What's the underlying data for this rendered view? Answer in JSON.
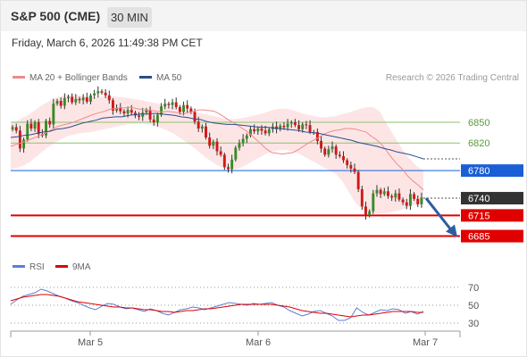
{
  "header": {
    "title": "S&P 500 (CME)",
    "timeframe": "30 MIN"
  },
  "timestamp": "Friday, March 6, 2026 11:49:38 PM CET",
  "legend": [
    {
      "label": "MA 20 + Bollinger Bands",
      "color": "#f08a8a"
    },
    {
      "label": "MA 50",
      "color": "#2a4d8f"
    }
  ],
  "copyright": "Research © 2026 Trading Central",
  "rsi_legend": [
    {
      "label": "RSI",
      "color": "#5b7fd6"
    },
    {
      "label": "9MA",
      "color": "#e00000"
    }
  ],
  "chart_data": [
    {
      "type": "candlestick",
      "title": "S&P 500 (CME)",
      "timeframe": "30 MIN",
      "ylim": [
        6665,
        6885
      ],
      "x_ticks": [
        "Mar 5",
        "Mar 6",
        "Mar 7"
      ],
      "levels": [
        {
          "label": "6850",
          "value": 6850,
          "kind": "resistance",
          "color": "#8dc26e"
        },
        {
          "label": "6820",
          "value": 6820,
          "kind": "resistance",
          "color": "#8dc26e"
        },
        {
          "label": "6780",
          "value": 6780,
          "kind": "pivot",
          "color": "#1a5fd6"
        },
        {
          "label": "6740",
          "value": 6740,
          "kind": "last",
          "color": "#333333"
        },
        {
          "label": "6715",
          "value": 6715,
          "kind": "support",
          "color": "#e00000"
        },
        {
          "label": "6685",
          "value": 6685,
          "kind": "support",
          "color": "#e00000"
        }
      ],
      "forecast_arrow": {
        "from": 6740,
        "to": 6685,
        "direction": "down"
      },
      "candles_close": [
        6843,
        6838,
        6812,
        6825,
        6848,
        6841,
        6850,
        6833,
        6831,
        6852,
        6847,
        6877,
        6881,
        6874,
        6885,
        6887,
        6879,
        6884,
        6882,
        6886,
        6880,
        6889,
        6892,
        6895,
        6893,
        6889,
        6882,
        6867,
        6871,
        6866,
        6863,
        6868,
        6864,
        6860,
        6858,
        6864,
        6868,
        6854,
        6850,
        6861,
        6873,
        6877,
        6875,
        6879,
        6872,
        6865,
        6875,
        6870,
        6865,
        6851,
        6841,
        6844,
        6828,
        6816,
        6822,
        6808,
        6803,
        6785,
        6782,
        6796,
        6813,
        6820,
        6826,
        6831,
        6840,
        6837,
        6841,
        6838,
        6834,
        6840,
        6844,
        6840,
        6845,
        6843,
        6848,
        6850,
        6846,
        6840,
        6847,
        6846,
        6836,
        6836,
        6823,
        6812,
        6803,
        6811,
        6815,
        6803,
        6801,
        6795,
        6788,
        6783,
        6778,
        6753,
        6728,
        6715,
        6721,
        6747,
        6752,
        6746,
        6750,
        6743,
        6741,
        6747,
        6738,
        6734,
        6729,
        6746,
        6739,
        6731,
        6741
      ],
      "ma20": [
        6815,
        6818,
        6820,
        6823,
        6826,
        6829,
        6832,
        6836,
        6840,
        6844,
        6846,
        6848,
        6850,
        6853,
        6856,
        6859,
        6862,
        6864,
        6866,
        6869,
        6870,
        6871,
        6871,
        6872,
        6870,
        6869,
        6868,
        6867,
        6866,
        6865,
        6866,
        6865,
        6864,
        6862,
        6864,
        6866,
        6868,
        6868,
        6867,
        6866,
        6862,
        6857,
        6852,
        6848,
        6843,
        6838,
        6832,
        6825,
        6818,
        6811,
        6806,
        6805,
        6804,
        6805,
        6806,
        6810,
        6815,
        6820,
        6824,
        6828,
        6833,
        6836,
        6838,
        6839,
        6841,
        6841,
        6840,
        6838,
        6836,
        6830,
        6825,
        6818,
        6808,
        6798,
        6789,
        6782,
        6772,
        6765,
        6759,
        6752
      ],
      "ma50": [
        6828,
        6829,
        6831,
        6832,
        6834,
        6836,
        6837,
        6840,
        6841,
        6843,
        6846,
        6849,
        6851,
        6853,
        6856,
        6857,
        6858,
        6858,
        6860,
        6861,
        6862,
        6862,
        6863,
        6862,
        6861,
        6860,
        6858,
        6857,
        6855,
        6854,
        6851,
        6849,
        6848,
        6847,
        6847,
        6846,
        6845,
        6844,
        6843,
        6843,
        6842,
        6841,
        6840,
        6839,
        6838,
        6836,
        6835,
        6834,
        6832,
        6830,
        6828,
        6826,
        6824,
        6821,
        6819,
        6817,
        6815,
        6812,
        6810,
        6807,
        6805,
        6803,
        6800,
        6797
      ],
      "bollinger_upper": [
        6848,
        6852,
        6857,
        6862,
        6868,
        6875,
        6880,
        6885,
        6888,
        6890,
        6890,
        6889,
        6888,
        6887,
        6887,
        6888,
        6888,
        6887,
        6886,
        6885,
        6883,
        6882,
        6880,
        6878,
        6876,
        6874,
        6872,
        6870,
        6868,
        6866,
        6864,
        6862,
        6860,
        6858,
        6856,
        6855,
        6855,
        6856,
        6858,
        6860,
        6862,
        6865,
        6868,
        6870,
        6870,
        6868,
        6865,
        6862,
        6860,
        6858,
        6857,
        6858,
        6859,
        6862,
        6864,
        6867,
        6870,
        6872,
        6872,
        6866,
        6850,
        6835,
        6820,
        6806,
        6795,
        6786,
        6780
      ],
      "bollinger_lower": [
        6782,
        6784,
        6787,
        6792,
        6800,
        6807,
        6814,
        6820,
        6825,
        6830,
        6832,
        6834,
        6835,
        6836,
        6838,
        6840,
        6842,
        6844,
        6846,
        6848,
        6848,
        6848,
        6847,
        6845,
        6842,
        6838,
        6834,
        6828,
        6822,
        6815,
        6808,
        6800,
        6794,
        6788,
        6784,
        6782,
        6782,
        6785,
        6790,
        6795,
        6800,
        6805,
        6808,
        6810,
        6810,
        6808,
        6805,
        6800,
        6795,
        6790,
        6785,
        6780,
        6775,
        6765,
        6750,
        6735,
        6725,
        6720,
        6718,
        6718,
        6718,
        6720,
        6722,
        6725,
        6728,
        6732,
        6735
      ]
    },
    {
      "type": "line",
      "title": "RSI",
      "series": [
        {
          "name": "RSI",
          "values": [
            51,
            56,
            60,
            62,
            64,
            68,
            66,
            63,
            60,
            58,
            55,
            53,
            50,
            47,
            45,
            49,
            52,
            51,
            48,
            46,
            47,
            45,
            43,
            46,
            44,
            41,
            39,
            42,
            45,
            46,
            48,
            47,
            45,
            47,
            49,
            51,
            53,
            52,
            51,
            50,
            52,
            51,
            52,
            53,
            50,
            48,
            44,
            41,
            38,
            40,
            43,
            44,
            41,
            38,
            33,
            33,
            36,
            47,
            42,
            39,
            42,
            45,
            44,
            46,
            45,
            41,
            43,
            40,
            43
          ]
        },
        {
          "name": "9MA",
          "values": [
            55,
            57,
            59,
            60,
            61,
            62,
            62,
            61,
            60,
            58,
            56,
            54,
            53,
            52,
            51,
            50,
            49,
            48,
            48,
            47,
            47,
            46,
            45,
            45,
            44,
            43,
            43,
            42,
            43,
            44,
            44,
            45,
            46,
            46,
            47,
            48,
            49,
            50,
            51,
            51,
            51,
            51,
            51,
            51,
            50,
            49,
            48,
            46,
            44,
            43,
            42,
            41,
            41,
            40,
            39,
            38,
            37,
            38,
            39,
            39,
            40,
            41,
            42,
            43,
            43,
            43,
            43,
            42,
            42
          ]
        }
      ],
      "y_ticks": [
        "70",
        "50",
        "30"
      ],
      "ylim": [
        20,
        80
      ]
    }
  ]
}
